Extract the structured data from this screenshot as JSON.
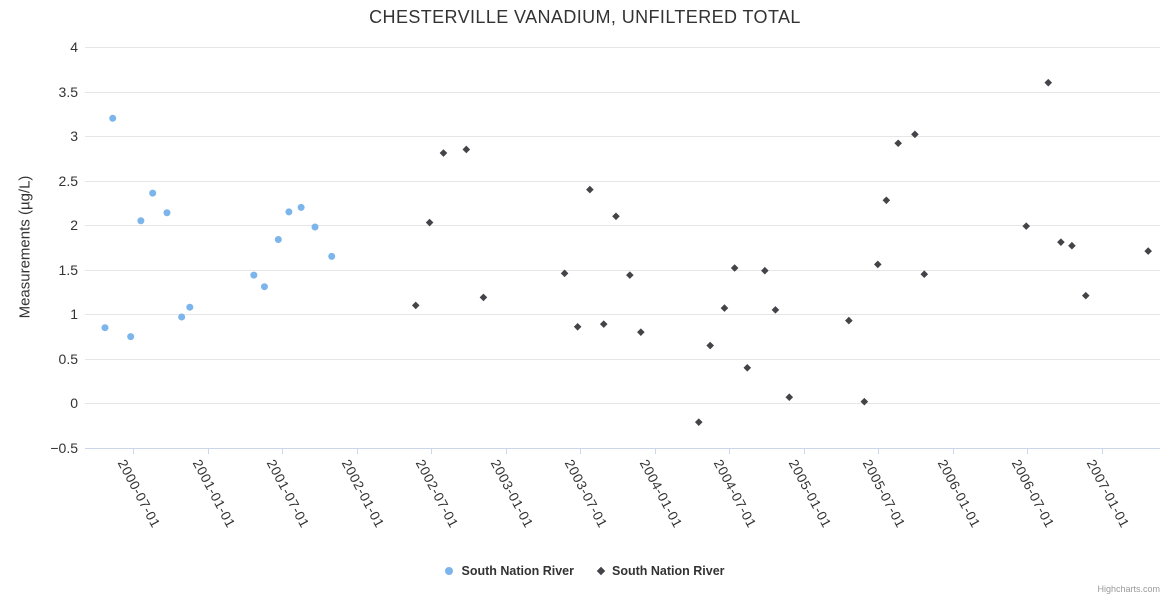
{
  "page": {
    "credit": "Highcharts.com"
  },
  "colors": {
    "series_blue": "#7cb5ec",
    "series_dark": "#434348",
    "grid_line": "#e6e6e6",
    "axis_line": "#ccd6eb",
    "text": "#333333",
    "credit_text": "#999999"
  },
  "chart_data": {
    "type": "scatter",
    "title": "CHESTERVILLE VANADIUM, UNFILTERED TOTAL",
    "xlabel": "",
    "ylabel": "Measurements (µg/L)",
    "grid": true,
    "legend_position": "bottom-center",
    "ylim": [
      -0.5,
      4
    ],
    "y_ticks": [
      4,
      3.5,
      3,
      2.5,
      2,
      1.5,
      1,
      0.5,
      0,
      -0.5
    ],
    "xlim": [
      "2000-03-05",
      "2007-05-24"
    ],
    "x_ticks": [
      "2000-07-01",
      "2001-01-01",
      "2001-07-01",
      "2002-01-01",
      "2002-07-01",
      "2003-01-01",
      "2003-07-01",
      "2004-01-01",
      "2004-07-01",
      "2005-01-01",
      "2005-07-01",
      "2006-01-01",
      "2006-07-01",
      "2007-01-01"
    ],
    "series": [
      {
        "name": "South Nation River",
        "marker": "circle",
        "color": "#7cb5ec",
        "points": [
          [
            "2000-04-23",
            0.85
          ],
          [
            "2000-05-12",
            3.2
          ],
          [
            "2000-06-25",
            0.75
          ],
          [
            "2000-07-20",
            2.05
          ],
          [
            "2000-08-18",
            2.36
          ],
          [
            "2000-09-22",
            2.14
          ],
          [
            "2000-10-28",
            0.97
          ],
          [
            "2000-11-17",
            1.08
          ],
          [
            "2001-04-23",
            1.44
          ],
          [
            "2001-05-19",
            1.31
          ],
          [
            "2001-06-22",
            1.84
          ],
          [
            "2001-07-18",
            2.15
          ],
          [
            "2001-08-17",
            2.2
          ],
          [
            "2001-09-20",
            1.98
          ],
          [
            "2001-10-31",
            1.65
          ]
        ]
      },
      {
        "name": "South Nation River",
        "marker": "diamond",
        "color": "#434348",
        "points": [
          [
            "2002-05-25",
            1.1
          ],
          [
            "2002-06-28",
            2.03
          ],
          [
            "2002-08-01",
            2.81
          ],
          [
            "2002-09-26",
            2.85
          ],
          [
            "2002-11-07",
            1.19
          ],
          [
            "2003-05-25",
            1.46
          ],
          [
            "2003-06-26",
            0.86
          ],
          [
            "2003-07-26",
            2.4
          ],
          [
            "2003-08-29",
            0.89
          ],
          [
            "2003-09-28",
            2.1
          ],
          [
            "2003-11-01",
            1.44
          ],
          [
            "2003-11-28",
            0.8
          ],
          [
            "2004-04-18",
            -0.21
          ],
          [
            "2004-05-16",
            0.65
          ],
          [
            "2004-06-20",
            1.07
          ],
          [
            "2004-07-15",
            1.52
          ],
          [
            "2004-08-15",
            0.4
          ],
          [
            "2004-09-27",
            1.49
          ],
          [
            "2004-10-23",
            1.05
          ],
          [
            "2004-11-26",
            0.07
          ],
          [
            "2005-04-21",
            0.93
          ],
          [
            "2005-05-29",
            0.02
          ],
          [
            "2005-07-01",
            1.56
          ],
          [
            "2005-07-22",
            2.28
          ],
          [
            "2005-08-20",
            2.92
          ],
          [
            "2005-09-30",
            3.02
          ],
          [
            "2005-10-23",
            1.45
          ],
          [
            "2006-06-30",
            1.99
          ],
          [
            "2006-08-23",
            3.6
          ],
          [
            "2006-09-23",
            1.81
          ],
          [
            "2006-10-20",
            1.77
          ],
          [
            "2006-11-23",
            1.21
          ],
          [
            "2007-04-25",
            1.71
          ]
        ]
      }
    ]
  }
}
